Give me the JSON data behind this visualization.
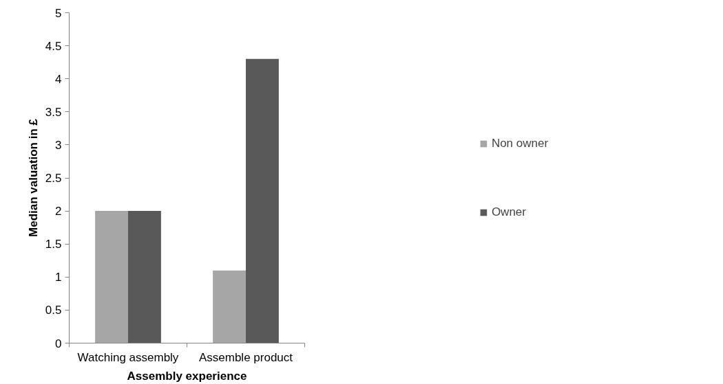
{
  "chart_data": {
    "type": "bar",
    "xlabel": "Assembly experience",
    "ylabel": "Median valuation in £",
    "categories": [
      "Watching assembly",
      "Assemble product"
    ],
    "series": [
      {
        "name": "Non owner",
        "color": "#a6a6a6",
        "values": [
          2,
          1.1
        ]
      },
      {
        "name": "Owner",
        "color": "#595959",
        "values": [
          2,
          4.3
        ]
      }
    ],
    "ylim": [
      0,
      5
    ],
    "yticks": [
      0,
      0.5,
      1,
      1.5,
      2,
      2.5,
      3,
      3.5,
      4,
      4.5,
      5
    ],
    "grid": false,
    "legend": "right"
  }
}
